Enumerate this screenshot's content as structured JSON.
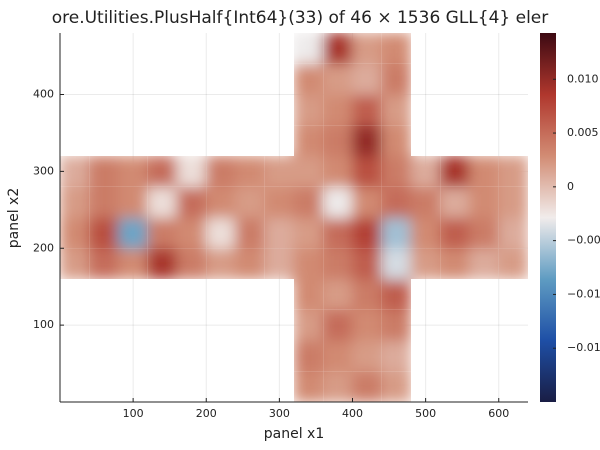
{
  "chart_data": {
    "type": "heatmap",
    "title": "ore.Utilities.PlusHalf{Int64}(33) of 46 × 1536 GLL{4} eler",
    "xlabel": "panel x1",
    "ylabel": "panel x2",
    "xbins": [
      0,
      40,
      80,
      120,
      160,
      200,
      240,
      280,
      320,
      360,
      400,
      440,
      480,
      520,
      560,
      600,
      640
    ],
    "ybins": [
      0,
      40,
      80,
      120,
      160,
      200,
      240,
      280,
      320,
      360,
      400,
      440,
      480
    ],
    "z": [
      [
        null,
        null,
        null,
        null,
        null,
        null,
        null,
        null,
        0.003,
        0.002,
        0.004,
        0.002,
        null,
        null,
        null,
        null
      ],
      [
        null,
        null,
        null,
        null,
        null,
        null,
        null,
        null,
        0.004,
        0.003,
        0.002,
        0.001,
        null,
        null,
        null,
        null
      ],
      [
        null,
        null,
        null,
        null,
        null,
        null,
        null,
        null,
        0.002,
        0.005,
        0.003,
        0.004,
        null,
        null,
        null,
        null
      ],
      [
        null,
        null,
        null,
        null,
        null,
        null,
        null,
        null,
        0.003,
        0.002,
        0.004,
        0.006,
        null,
        null,
        null,
        null
      ],
      [
        0.002,
        0.005,
        0.003,
        0.009,
        0.004,
        0.002,
        0.003,
        0.001,
        0.003,
        0.004,
        0.006,
        -0.004,
        0.002,
        0.003,
        0.001,
        0.002
      ],
      [
        0.003,
        0.007,
        -0.008,
        0.004,
        0.003,
        -0.002,
        0.004,
        0.001,
        0.002,
        0.005,
        0.008,
        -0.006,
        0.003,
        0.006,
        0.004,
        0.001
      ],
      [
        0.002,
        0.004,
        0.003,
        -0.002,
        0.005,
        0.003,
        0.002,
        0.003,
        0.004,
        -0.003,
        0.003,
        0.005,
        0.004,
        0.001,
        0.003,
        0.002
      ],
      [
        0.001,
        0.004,
        0.003,
        0.005,
        -0.002,
        0.004,
        0.003,
        0.002,
        0.002,
        0.003,
        0.007,
        0.004,
        0.001,
        0.009,
        0.003,
        0.002
      ],
      [
        null,
        null,
        null,
        null,
        null,
        null,
        null,
        null,
        0.003,
        0.004,
        0.01,
        0.003,
        null,
        null,
        null,
        null
      ],
      [
        null,
        null,
        null,
        null,
        null,
        null,
        null,
        null,
        0.002,
        0.003,
        0.006,
        0.002,
        null,
        null,
        null,
        null
      ],
      [
        null,
        null,
        null,
        null,
        null,
        null,
        null,
        null,
        0.003,
        0.002,
        0.001,
        0.004,
        null,
        null,
        null,
        null
      ],
      [
        null,
        null,
        null,
        null,
        null,
        null,
        null,
        null,
        -0.003,
        0.009,
        0.002,
        0.003,
        null,
        null,
        null,
        null
      ]
    ],
    "xlim": [
      0,
      640
    ],
    "ylim": [
      0,
      480
    ],
    "xticks": [
      100,
      200,
      300,
      400,
      500,
      600
    ],
    "yticks": [
      100,
      200,
      300,
      400
    ],
    "clim": [
      -0.02,
      0.0143
    ],
    "cticks": [
      {
        "value": 0.01,
        "label": "0.010"
      },
      {
        "value": 0.005,
        "label": "0.005"
      },
      0,
      {
        "value": -0.005,
        "label": "−0.00"
      },
      {
        "value": -0.01,
        "label": "−0.01"
      },
      {
        "value": -0.015,
        "label": "−0.01"
      }
    ],
    "colormap": [
      "#191d44",
      "#1e4fa6",
      "#5f9cc2",
      "#f1eceb",
      "#d28c74",
      "#b0372d",
      "#3c0912"
    ],
    "grid": true
  }
}
